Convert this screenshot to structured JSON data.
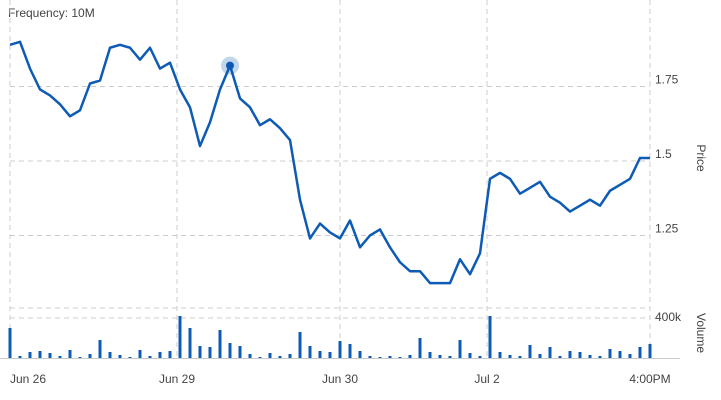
{
  "chart_data": {
    "type": "line",
    "title": "Frequency: 10M",
    "ylabel": "Price",
    "y2label": "Volume",
    "x": [
      0,
      1,
      2,
      3,
      4,
      5,
      6,
      7,
      8,
      9,
      10,
      11,
      12,
      13,
      14,
      15,
      16,
      17,
      18,
      19,
      20,
      21,
      22,
      23,
      24,
      25,
      26,
      27,
      28,
      29,
      30,
      31,
      32,
      33,
      34,
      35,
      36,
      37,
      38,
      39,
      40,
      41,
      42,
      43,
      44,
      45,
      46,
      47,
      48,
      49,
      50,
      51,
      52,
      53,
      54,
      55,
      56,
      57,
      58,
      59,
      60,
      61,
      62,
      63,
      64
    ],
    "xlim": [
      0,
      64
    ],
    "xticks": [
      {
        "value": 0,
        "label": "Jun 26"
      },
      {
        "value": 16.7,
        "label": "Jun 29"
      },
      {
        "value": 33,
        "label": "Jun 30"
      },
      {
        "value": 47.7,
        "label": "Jul 2"
      },
      {
        "value": 64,
        "label": "4:00PM"
      }
    ],
    "ylim": [
      1.04,
      2.0
    ],
    "yticks": [
      1.25,
      1.5,
      1.75
    ],
    "grid": true,
    "highlighted_point": 22,
    "price": {
      "color": "#0d5bb5",
      "values": [
        1.89,
        1.9,
        1.81,
        1.74,
        1.72,
        1.69,
        1.65,
        1.67,
        1.76,
        1.77,
        1.88,
        1.89,
        1.88,
        1.84,
        1.88,
        1.81,
        1.83,
        1.74,
        1.68,
        1.55,
        1.63,
        1.74,
        1.82,
        1.71,
        1.68,
        1.62,
        1.64,
        1.61,
        1.57,
        1.37,
        1.24,
        1.29,
        1.26,
        1.24,
        1.3,
        1.21,
        1.25,
        1.27,
        1.21,
        1.16,
        1.13,
        1.13,
        1.09,
        1.09,
        1.09,
        1.17,
        1.12,
        1.19,
        1.44,
        1.46,
        1.44,
        1.39,
        1.41,
        1.43,
        1.38,
        1.36,
        1.33,
        1.35,
        1.37,
        1.35,
        1.4,
        1.42,
        1.44,
        1.51,
        1.51
      ]
    },
    "volume": {
      "color": "#0d5bb5",
      "ylim": [
        0,
        500000
      ],
      "yticks": [
        {
          "value": 400000,
          "label": "400k"
        }
      ],
      "values": [
        300000,
        20000,
        60000,
        70000,
        50000,
        20000,
        80000,
        10000,
        40000,
        180000,
        60000,
        30000,
        10000,
        80000,
        20000,
        60000,
        70000,
        420000,
        300000,
        120000,
        110000,
        280000,
        150000,
        120000,
        40000,
        10000,
        50000,
        20000,
        40000,
        260000,
        120000,
        70000,
        60000,
        170000,
        140000,
        70000,
        20000,
        10000,
        20000,
        10000,
        30000,
        200000,
        60000,
        30000,
        20000,
        180000,
        50000,
        20000,
        420000,
        60000,
        30000,
        20000,
        130000,
        40000,
        110000,
        20000,
        70000,
        60000,
        30000,
        20000,
        90000,
        70000,
        40000,
        110000,
        140000
      ]
    }
  }
}
